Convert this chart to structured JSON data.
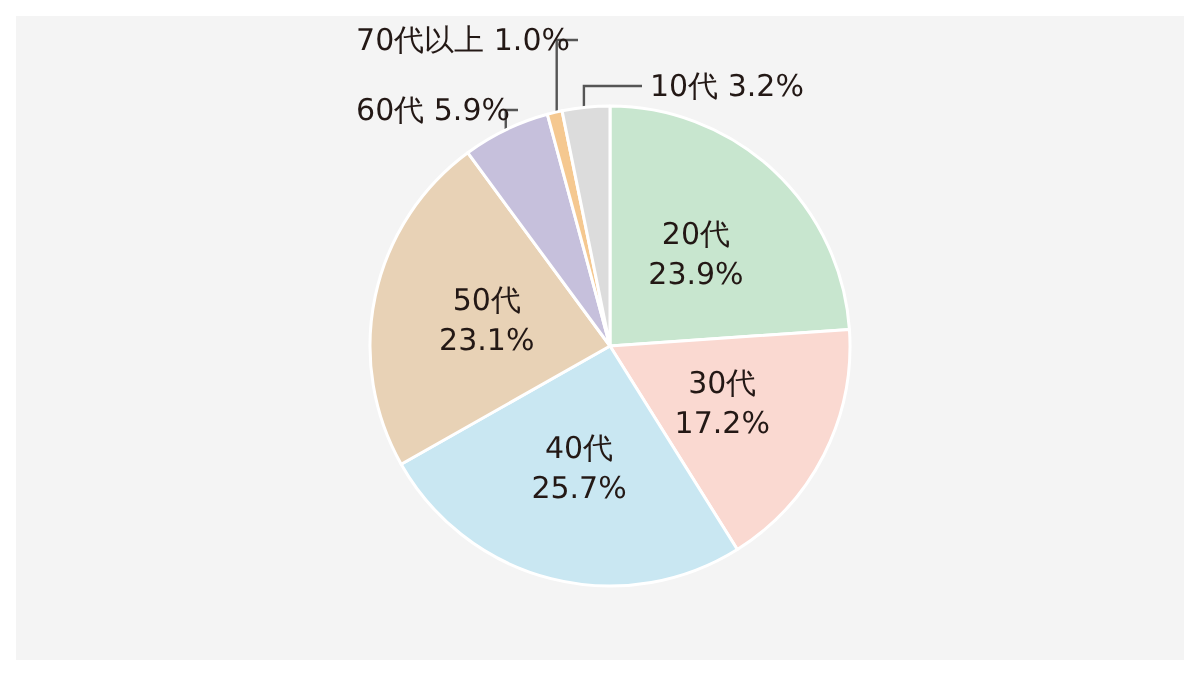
{
  "chart_data": {
    "type": "pie",
    "categories": [
      "20代",
      "30代",
      "40代",
      "50代",
      "60代",
      "70代以上",
      "10代"
    ],
    "values": [
      23.9,
      17.2,
      25.7,
      23.1,
      5.9,
      1.0,
      3.2
    ],
    "value_labels": [
      "23.9%",
      "17.2%",
      "25.7%",
      "23.1%",
      "5.9%",
      "1.0%",
      "3.2%"
    ],
    "colors": [
      "#c8e6cf",
      "#fad9d1",
      "#c9e7f2",
      "#e8d2b6",
      "#c6c0dc",
      "#f5c890",
      "#dcdcdc"
    ],
    "legend": false
  }
}
